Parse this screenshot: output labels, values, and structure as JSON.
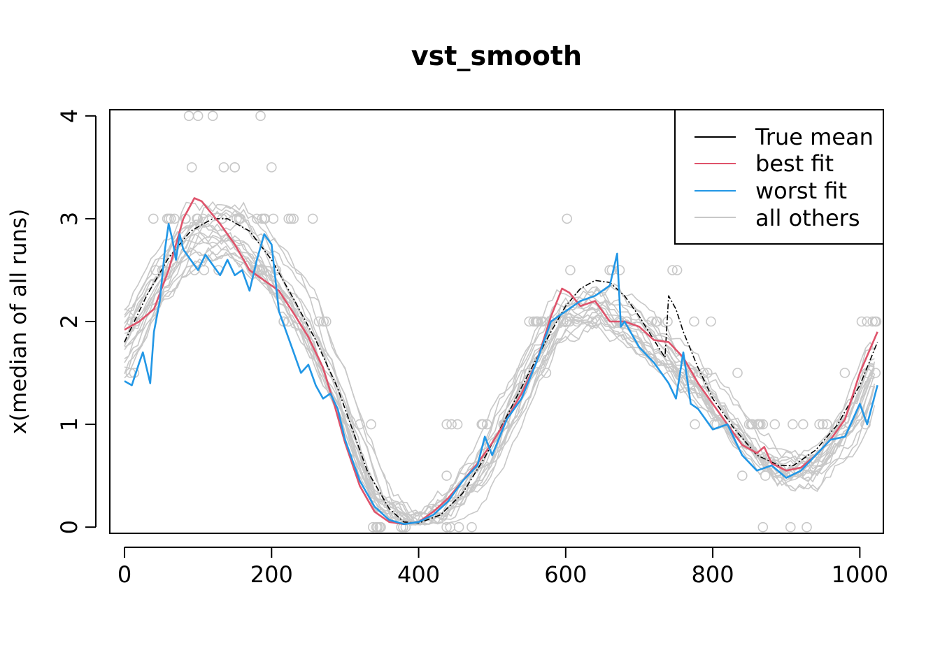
{
  "chart_data": {
    "type": "line",
    "title": "vst_smooth",
    "xlabel": "",
    "ylabel": "x(median of all runs)",
    "xlim": [
      -20,
      1032
    ],
    "ylim": [
      -0.06,
      4.06
    ],
    "xticks": [
      "0",
      "200",
      "400",
      "600",
      "800",
      "1000"
    ],
    "xtick_values": [
      0,
      200,
      400,
      600,
      800,
      1000
    ],
    "yticks": [
      "0",
      "1",
      "2",
      "3",
      "4"
    ],
    "ytick_values": [
      0,
      1,
      2,
      3,
      4
    ],
    "legend": {
      "placement": "top-right",
      "entries": [
        {
          "label": "True mean",
          "color": "#000000"
        },
        {
          "label": "best fit",
          "color": "#DF536B"
        },
        {
          "label": "worst fit",
          "color": "#2297E6"
        },
        {
          "label": "all others",
          "color": "#C8C8C8"
        }
      ]
    },
    "true_mean": {
      "name": "True mean",
      "color": "#000000",
      "x": [
        0,
        30,
        60,
        90,
        120,
        140,
        170,
        200,
        230,
        260,
        290,
        310,
        330,
        360,
        380,
        400,
        430,
        460,
        490,
        520,
        550,
        580,
        600,
        620,
        640,
        660,
        680,
        700,
        720,
        735,
        740,
        750,
        760,
        780,
        800,
        830,
        860,
        890,
        910,
        940,
        970,
        1000,
        1024
      ],
      "y": [
        1.8,
        2.25,
        2.62,
        2.88,
        3.0,
        3.0,
        2.88,
        2.6,
        2.22,
        1.82,
        1.35,
        0.95,
        0.55,
        0.18,
        0.05,
        0.04,
        0.12,
        0.33,
        0.68,
        1.08,
        1.5,
        1.9,
        2.15,
        2.32,
        2.4,
        2.38,
        2.25,
        2.05,
        1.82,
        1.65,
        2.25,
        2.12,
        1.9,
        1.55,
        1.25,
        0.95,
        0.7,
        0.6,
        0.6,
        0.75,
        1.0,
        1.38,
        1.8
      ]
    },
    "best_fit": {
      "name": "best fit",
      "color": "#DF536B",
      "x": [
        0,
        20,
        40,
        60,
        80,
        95,
        105,
        115,
        130,
        150,
        170,
        190,
        210,
        230,
        250,
        270,
        285,
        300,
        320,
        340,
        360,
        380,
        400,
        420,
        440,
        460,
        480,
        500,
        520,
        540,
        560,
        580,
        595,
        605,
        620,
        640,
        660,
        680,
        700,
        720,
        740,
        760,
        780,
        800,
        820,
        840,
        860,
        870,
        880,
        900,
        920,
        940,
        960,
        980,
        1000,
        1024
      ],
      "y": [
        1.92,
        2.0,
        2.12,
        2.5,
        3.0,
        3.2,
        3.17,
        3.08,
        2.95,
        2.75,
        2.5,
        2.4,
        2.3,
        2.08,
        1.85,
        1.55,
        1.2,
        0.82,
        0.4,
        0.15,
        0.05,
        0.03,
        0.05,
        0.15,
        0.28,
        0.45,
        0.62,
        0.82,
        1.05,
        1.3,
        1.6,
        2.05,
        2.32,
        2.28,
        2.15,
        2.2,
        2.0,
        2.0,
        1.95,
        1.82,
        1.8,
        1.65,
        1.4,
        1.2,
        1.0,
        0.8,
        0.72,
        0.78,
        0.62,
        0.55,
        0.58,
        0.7,
        0.85,
        1.05,
        1.5,
        1.9
      ]
    },
    "worst_fit": {
      "name": "worst fit",
      "color": "#2297E6",
      "x": [
        0,
        10,
        20,
        25,
        35,
        40,
        48,
        55,
        60,
        65,
        70,
        75,
        80,
        90,
        100,
        110,
        120,
        130,
        140,
        150,
        160,
        170,
        180,
        190,
        200,
        210,
        220,
        230,
        240,
        250,
        260,
        270,
        280,
        290,
        300,
        320,
        340,
        360,
        380,
        400,
        420,
        440,
        460,
        480,
        490,
        500,
        520,
        540,
        560,
        580,
        600,
        620,
        640,
        650,
        660,
        670,
        675,
        680,
        700,
        720,
        740,
        750,
        760,
        770,
        780,
        800,
        820,
        840,
        860,
        880,
        900,
        920,
        940,
        960,
        980,
        1000,
        1010,
        1024
      ],
      "y": [
        1.42,
        1.38,
        1.6,
        1.7,
        1.4,
        1.9,
        2.2,
        2.7,
        2.95,
        2.8,
        2.6,
        2.85,
        2.7,
        2.6,
        2.5,
        2.65,
        2.55,
        2.45,
        2.6,
        2.45,
        2.5,
        2.3,
        2.6,
        2.85,
        2.75,
        2.1,
        1.9,
        1.7,
        1.5,
        1.58,
        1.38,
        1.25,
        1.3,
        1.15,
        0.85,
        0.45,
        0.2,
        0.07,
        0.03,
        0.05,
        0.12,
        0.25,
        0.45,
        0.6,
        0.88,
        0.7,
        1.05,
        1.25,
        1.6,
        2.0,
        2.1,
        2.2,
        2.25,
        2.3,
        2.35,
        2.66,
        1.95,
        2.0,
        1.75,
        1.6,
        1.4,
        1.25,
        1.7,
        1.2,
        1.15,
        0.95,
        1.0,
        0.7,
        0.55,
        0.6,
        0.48,
        0.55,
        0.7,
        0.85,
        0.88,
        1.2,
        1.0,
        1.38
      ]
    },
    "others_summary": {
      "name": "all others",
      "color": "#C8C8C8",
      "x": [
        0,
        50,
        100,
        150,
        200,
        250,
        300,
        350,
        400,
        450,
        500,
        550,
        600,
        650,
        700,
        750,
        800,
        850,
        900,
        950,
        1000,
        1024
      ],
      "y": [
        1.75,
        2.35,
        2.85,
        2.85,
        2.55,
        2.0,
        1.2,
        0.28,
        0.06,
        0.22,
        0.7,
        1.45,
        2.05,
        2.15,
        1.9,
        1.6,
        1.25,
        0.85,
        0.55,
        0.6,
        1.1,
        1.55
      ]
    },
    "points_summary": {
      "name": "observed points (grey circles)",
      "levels": [
        0,
        0.5,
        1,
        1.5,
        2,
        2.5,
        3,
        3.5,
        4
      ]
    }
  }
}
